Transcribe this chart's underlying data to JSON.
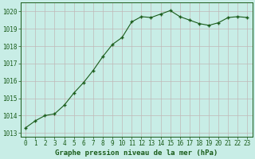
{
  "x": [
    0,
    1,
    2,
    3,
    4,
    5,
    6,
    7,
    8,
    9,
    10,
    11,
    12,
    13,
    14,
    15,
    16,
    17,
    18,
    19,
    20,
    21,
    22,
    23
  ],
  "y": [
    1013.3,
    1013.7,
    1014.0,
    1014.1,
    1014.6,
    1015.3,
    1015.9,
    1016.6,
    1017.4,
    1018.1,
    1018.5,
    1019.4,
    1019.7,
    1019.65,
    1019.85,
    1020.05,
    1019.7,
    1019.5,
    1019.3,
    1019.2,
    1019.35,
    1019.65,
    1019.7,
    1019.65
  ],
  "line_color": "#1a5c1a",
  "marker": "P",
  "marker_size": 2.2,
  "bg_color": "#c8ede6",
  "grid_color": "#c0b8b8",
  "xlabel": "Graphe pression niveau de la mer (hPa)",
  "xlabel_color": "#1a5c1a",
  "tick_color": "#1a5c1a",
  "ylim": [
    1012.8,
    1020.5
  ],
  "yticks": [
    1013,
    1014,
    1015,
    1016,
    1017,
    1018,
    1019,
    1020
  ],
  "xlim": [
    -0.5,
    23.5
  ],
  "xticks": [
    0,
    1,
    2,
    3,
    4,
    5,
    6,
    7,
    8,
    9,
    10,
    11,
    12,
    13,
    14,
    15,
    16,
    17,
    18,
    19,
    20,
    21,
    22,
    23
  ],
  "xlabel_fontsize": 6.5,
  "tick_fontsize": 5.5
}
